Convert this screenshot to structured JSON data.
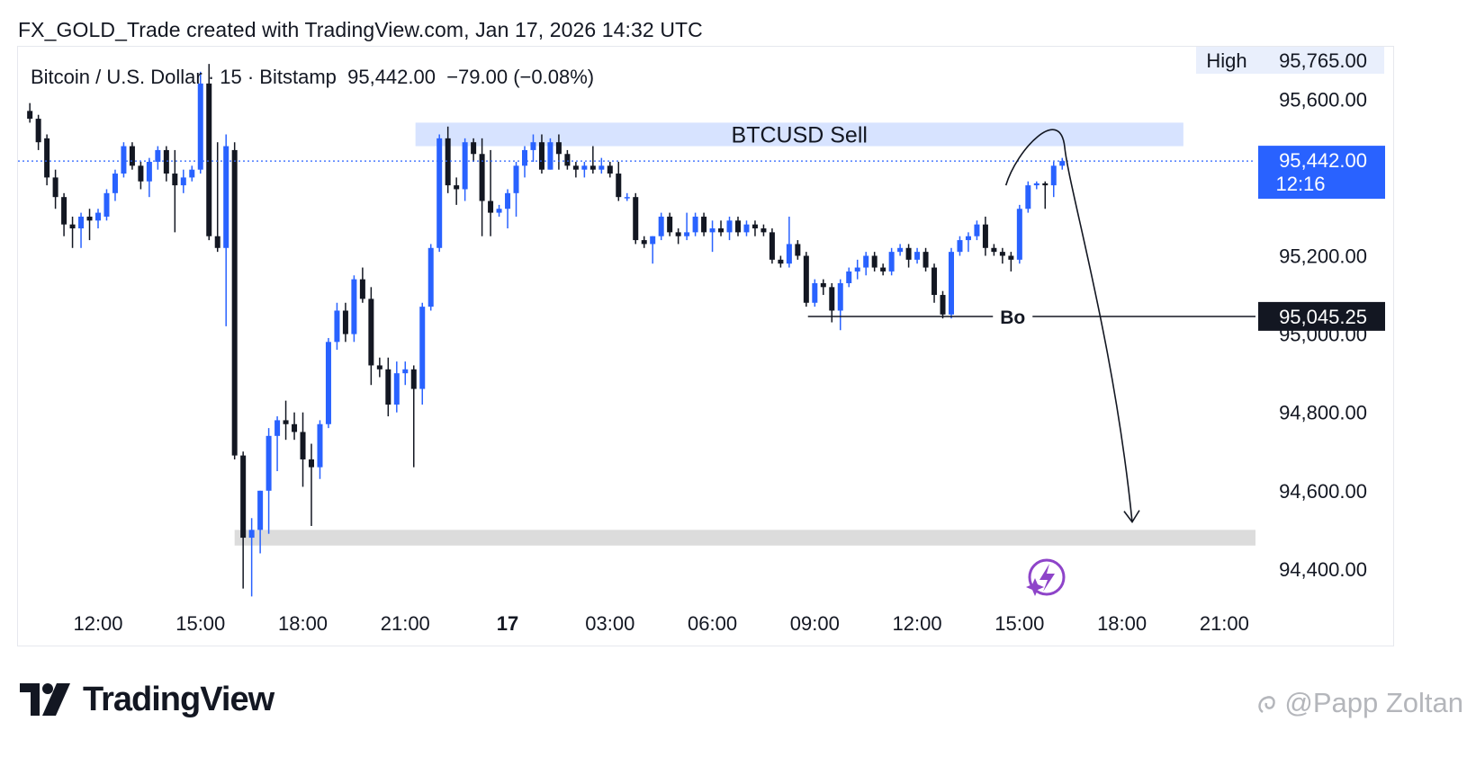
{
  "caption": "FX_GOLD_Trade created with TradingView.com, Jan 17, 2026 14:32 UTC",
  "symbol_info": "Bitcoin / U.S. Dollar · 15 · Bitstamp  95,442.00  −79.00 (−0.08%)",
  "brand": "TradingView",
  "watermark": "@Papp Zoltan",
  "colors": {
    "up": "#2962ff",
    "down": "#131722",
    "sell_zone": "#d7e3ff",
    "target_zone": "#dcdcdc",
    "last_price_bg": "#2962ff",
    "label_bg": "#131722"
  },
  "chart_data": {
    "type": "candlestick",
    "symbol": "BTCUSD",
    "interval": "15",
    "exchange": "Bitstamp",
    "ylim": [
      94330,
      95800
    ],
    "y_ticks": [
      {
        "value": 95600,
        "label": "95,600.00"
      },
      {
        "value": 95200,
        "label": "95,200.00"
      },
      {
        "value": 95000,
        "label": "95,000.00"
      },
      {
        "value": 94800,
        "label": "94,800.00"
      },
      {
        "value": 94600,
        "label": "94,600.00"
      },
      {
        "value": 94400,
        "label": "94,400.00"
      }
    ],
    "x_ticks": [
      {
        "hour": 12,
        "label": "12:00"
      },
      {
        "hour": 15,
        "label": "15:00"
      },
      {
        "hour": 18,
        "label": "18:00"
      },
      {
        "hour": 21,
        "label": "21:00"
      },
      {
        "hour": 24,
        "label": "17",
        "bold": true
      },
      {
        "hour": 27,
        "label": "03:00"
      },
      {
        "hour": 30,
        "label": "06:00"
      },
      {
        "hour": 33,
        "label": "09:00"
      },
      {
        "hour": 36,
        "label": "12:00"
      },
      {
        "hour": 39,
        "label": "15:00"
      },
      {
        "hour": 42,
        "label": "18:00"
      },
      {
        "hour": 45,
        "label": "21:00"
      }
    ],
    "high_label": "High",
    "high_value": "95,765.00",
    "last_price": {
      "value": 95442,
      "label": "95,442.00",
      "countdown": "12:16"
    },
    "level_label": {
      "value": 95045.25,
      "label": "95,045.25"
    },
    "zones": [
      {
        "name": "BTCUSD Sell",
        "from_hour": 21.3,
        "to_hour": 43.8,
        "top": 95540,
        "bottom": 95480
      },
      {
        "name": "",
        "from_hour": 16.0,
        "to_hour": 46.0,
        "top": 94500,
        "bottom": 94460
      }
    ],
    "hline": {
      "label": "Bo",
      "value": 95045,
      "from_hour": 32.8,
      "label_hour": 38.8
    },
    "projection": {
      "from": {
        "hour": 38.6,
        "value": 95380
      },
      "peak": {
        "hour": 39.4,
        "value": 95500
      },
      "to": {
        "hour": 42.3,
        "value": 94520
      }
    },
    "candles": [
      {
        "t": 10.0,
        "o": 95570,
        "h": 95590,
        "l": 95540,
        "c": 95550
      },
      {
        "t": 10.25,
        "o": 95550,
        "h": 95560,
        "l": 95470,
        "c": 95490
      },
      {
        "t": 10.5,
        "o": 95500,
        "h": 95510,
        "l": 95380,
        "c": 95400
      },
      {
        "t": 10.75,
        "o": 95400,
        "h": 95420,
        "l": 95320,
        "c": 95350
      },
      {
        "t": 11.0,
        "o": 95350,
        "h": 95360,
        "l": 95250,
        "c": 95280
      },
      {
        "t": 11.25,
        "o": 95280,
        "h": 95300,
        "l": 95220,
        "c": 95270
      },
      {
        "t": 11.5,
        "o": 95270,
        "h": 95310,
        "l": 95220,
        "c": 95300
      },
      {
        "t": 11.75,
        "o": 95300,
        "h": 95320,
        "l": 95240,
        "c": 95290
      },
      {
        "t": 12.0,
        "o": 95290,
        "h": 95320,
        "l": 95270,
        "c": 95310
      },
      {
        "t": 12.25,
        "o": 95300,
        "h": 95370,
        "l": 95290,
        "c": 95360
      },
      {
        "t": 12.5,
        "o": 95360,
        "h": 95420,
        "l": 95340,
        "c": 95410
      },
      {
        "t": 12.75,
        "o": 95410,
        "h": 95490,
        "l": 95400,
        "c": 95480
      },
      {
        "t": 13.0,
        "o": 95480,
        "h": 95490,
        "l": 95420,
        "c": 95430
      },
      {
        "t": 13.25,
        "o": 95430,
        "h": 95440,
        "l": 95370,
        "c": 95390
      },
      {
        "t": 13.5,
        "o": 95390,
        "h": 95450,
        "l": 95350,
        "c": 95440
      },
      {
        "t": 13.75,
        "o": 95440,
        "h": 95480,
        "l": 95420,
        "c": 95470
      },
      {
        "t": 14.0,
        "o": 95470,
        "h": 95480,
        "l": 95390,
        "c": 95410
      },
      {
        "t": 14.25,
        "o": 95410,
        "h": 95470,
        "l": 95260,
        "c": 95380
      },
      {
        "t": 14.5,
        "o": 95380,
        "h": 95420,
        "l": 95360,
        "c": 95400
      },
      {
        "t": 14.75,
        "o": 95400,
        "h": 95430,
        "l": 95390,
        "c": 95420
      },
      {
        "t": 15.0,
        "o": 95420,
        "h": 95670,
        "l": 95410,
        "c": 95640
      },
      {
        "t": 15.25,
        "o": 95640,
        "h": 95690,
        "l": 95240,
        "c": 95250
      },
      {
        "t": 15.5,
        "o": 95250,
        "h": 95490,
        "l": 95210,
        "c": 95220
      },
      {
        "t": 15.75,
        "o": 95220,
        "h": 95510,
        "l": 95020,
        "c": 95480
      },
      {
        "t": 16.0,
        "o": 95470,
        "h": 95490,
        "l": 94680,
        "c": 94690
      },
      {
        "t": 16.25,
        "o": 94690,
        "h": 94700,
        "l": 94350,
        "c": 94480
      },
      {
        "t": 16.5,
        "o": 94480,
        "h": 94530,
        "l": 94330,
        "c": 94500
      },
      {
        "t": 16.75,
        "o": 94500,
        "h": 94600,
        "l": 94440,
        "c": 94600
      },
      {
        "t": 17.0,
        "o": 94600,
        "h": 94760,
        "l": 94490,
        "c": 94740
      },
      {
        "t": 17.25,
        "o": 94740,
        "h": 94790,
        "l": 94650,
        "c": 94780
      },
      {
        "t": 17.5,
        "o": 94780,
        "h": 94830,
        "l": 94730,
        "c": 94770
      },
      {
        "t": 17.75,
        "o": 94770,
        "h": 94800,
        "l": 94730,
        "c": 94750
      },
      {
        "t": 18.0,
        "o": 94750,
        "h": 94800,
        "l": 94610,
        "c": 94680
      },
      {
        "t": 18.25,
        "o": 94680,
        "h": 94720,
        "l": 94510,
        "c": 94660
      },
      {
        "t": 18.5,
        "o": 94660,
        "h": 94780,
        "l": 94630,
        "c": 94770
      },
      {
        "t": 18.75,
        "o": 94770,
        "h": 94990,
        "l": 94760,
        "c": 94980
      },
      {
        "t": 19.0,
        "o": 94980,
        "h": 95080,
        "l": 94960,
        "c": 95060
      },
      {
        "t": 19.25,
        "o": 95060,
        "h": 95080,
        "l": 94980,
        "c": 95000
      },
      {
        "t": 19.5,
        "o": 95000,
        "h": 95150,
        "l": 94980,
        "c": 95140
      },
      {
        "t": 19.75,
        "o": 95140,
        "h": 95170,
        "l": 95080,
        "c": 95090
      },
      {
        "t": 20.0,
        "o": 95090,
        "h": 95120,
        "l": 94870,
        "c": 94920
      },
      {
        "t": 20.25,
        "o": 94920,
        "h": 94940,
        "l": 94890,
        "c": 94910
      },
      {
        "t": 20.5,
        "o": 94910,
        "h": 94940,
        "l": 94790,
        "c": 94820
      },
      {
        "t": 20.75,
        "o": 94820,
        "h": 94930,
        "l": 94800,
        "c": 94900
      },
      {
        "t": 21.0,
        "o": 94900,
        "h": 94930,
        "l": 94870,
        "c": 94910
      },
      {
        "t": 21.25,
        "o": 94910,
        "h": 94920,
        "l": 94660,
        "c": 94860
      },
      {
        "t": 21.5,
        "o": 94860,
        "h": 95080,
        "l": 94820,
        "c": 95070
      },
      {
        "t": 21.75,
        "o": 95070,
        "h": 95230,
        "l": 95060,
        "c": 95220
      },
      {
        "t": 22.0,
        "o": 95220,
        "h": 95510,
        "l": 95210,
        "c": 95500
      },
      {
        "t": 22.25,
        "o": 95500,
        "h": 95530,
        "l": 95360,
        "c": 95380
      },
      {
        "t": 22.5,
        "o": 95380,
        "h": 95400,
        "l": 95330,
        "c": 95370
      },
      {
        "t": 22.75,
        "o": 95370,
        "h": 95500,
        "l": 95340,
        "c": 95490
      },
      {
        "t": 23.0,
        "o": 95490,
        "h": 95500,
        "l": 95440,
        "c": 95460
      },
      {
        "t": 23.25,
        "o": 95460,
        "h": 95500,
        "l": 95250,
        "c": 95340
      },
      {
        "t": 23.5,
        "o": 95340,
        "h": 95470,
        "l": 95250,
        "c": 95310
      },
      {
        "t": 23.75,
        "o": 95310,
        "h": 95330,
        "l": 95300,
        "c": 95320
      },
      {
        "t": 24.0,
        "o": 95320,
        "h": 95370,
        "l": 95270,
        "c": 95360
      },
      {
        "t": 24.25,
        "o": 95360,
        "h": 95440,
        "l": 95300,
        "c": 95430
      },
      {
        "t": 24.5,
        "o": 95430,
        "h": 95480,
        "l": 95400,
        "c": 95470
      },
      {
        "t": 24.75,
        "o": 95470,
        "h": 95510,
        "l": 95440,
        "c": 95490
      },
      {
        "t": 25.0,
        "o": 95490,
        "h": 95510,
        "l": 95410,
        "c": 95420
      },
      {
        "t": 25.25,
        "o": 95420,
        "h": 95500,
        "l": 95420,
        "c": 95490
      },
      {
        "t": 25.5,
        "o": 95490,
        "h": 95510,
        "l": 95420,
        "c": 95460
      },
      {
        "t": 25.75,
        "o": 95460,
        "h": 95470,
        "l": 95420,
        "c": 95430
      },
      {
        "t": 26.0,
        "o": 95430,
        "h": 95440,
        "l": 95400,
        "c": 95420
      },
      {
        "t": 26.25,
        "o": 95420,
        "h": 95440,
        "l": 95400,
        "c": 95430
      },
      {
        "t": 26.5,
        "o": 95430,
        "h": 95480,
        "l": 95410,
        "c": 95420
      },
      {
        "t": 26.75,
        "o": 95420,
        "h": 95450,
        "l": 95410,
        "c": 95430
      },
      {
        "t": 27.0,
        "o": 95430,
        "h": 95440,
        "l": 95400,
        "c": 95410
      },
      {
        "t": 27.25,
        "o": 95410,
        "h": 95440,
        "l": 95340,
        "c": 95350
      },
      {
        "t": 27.5,
        "o": 95350,
        "h": 95360,
        "l": 95340,
        "c": 95350
      },
      {
        "t": 27.75,
        "o": 95350,
        "h": 95360,
        "l": 95230,
        "c": 95240
      },
      {
        "t": 28.0,
        "o": 95240,
        "h": 95250,
        "l": 95220,
        "c": 95230
      },
      {
        "t": 28.25,
        "o": 95230,
        "h": 95250,
        "l": 95180,
        "c": 95250
      },
      {
        "t": 28.5,
        "o": 95250,
        "h": 95310,
        "l": 95240,
        "c": 95300
      },
      {
        "t": 28.75,
        "o": 95300,
        "h": 95310,
        "l": 95250,
        "c": 95260
      },
      {
        "t": 29.0,
        "o": 95260,
        "h": 95270,
        "l": 95230,
        "c": 95250
      },
      {
        "t": 29.25,
        "o": 95250,
        "h": 95310,
        "l": 95240,
        "c": 95260
      },
      {
        "t": 29.5,
        "o": 95260,
        "h": 95310,
        "l": 95250,
        "c": 95300
      },
      {
        "t": 29.75,
        "o": 95300,
        "h": 95310,
        "l": 95250,
        "c": 95260
      },
      {
        "t": 30.0,
        "o": 95260,
        "h": 95290,
        "l": 95210,
        "c": 95270
      },
      {
        "t": 30.25,
        "o": 95270,
        "h": 95290,
        "l": 95250,
        "c": 95260
      },
      {
        "t": 30.5,
        "o": 95260,
        "h": 95300,
        "l": 95240,
        "c": 95290
      },
      {
        "t": 30.75,
        "o": 95290,
        "h": 95300,
        "l": 95250,
        "c": 95260
      },
      {
        "t": 31.0,
        "o": 95260,
        "h": 95290,
        "l": 95250,
        "c": 95280
      },
      {
        "t": 31.25,
        "o": 95280,
        "h": 95290,
        "l": 95250,
        "c": 95270
      },
      {
        "t": 31.5,
        "o": 95270,
        "h": 95280,
        "l": 95250,
        "c": 95260
      },
      {
        "t": 31.75,
        "o": 95260,
        "h": 95270,
        "l": 95180,
        "c": 95190
      },
      {
        "t": 32.0,
        "o": 95190,
        "h": 95200,
        "l": 95170,
        "c": 95180
      },
      {
        "t": 32.25,
        "o": 95180,
        "h": 95300,
        "l": 95170,
        "c": 95230
      },
      {
        "t": 32.5,
        "o": 95230,
        "h": 95240,
        "l": 95190,
        "c": 95200
      },
      {
        "t": 32.75,
        "o": 95200,
        "h": 95210,
        "l": 95070,
        "c": 95080
      },
      {
        "t": 33.0,
        "o": 95080,
        "h": 95140,
        "l": 95070,
        "c": 95130
      },
      {
        "t": 33.25,
        "o": 95130,
        "h": 95140,
        "l": 95100,
        "c": 95120
      },
      {
        "t": 33.5,
        "o": 95120,
        "h": 95130,
        "l": 95030,
        "c": 95060
      },
      {
        "t": 33.75,
        "o": 95060,
        "h": 95140,
        "l": 95010,
        "c": 95130
      },
      {
        "t": 34.0,
        "o": 95130,
        "h": 95170,
        "l": 95120,
        "c": 95160
      },
      {
        "t": 34.25,
        "o": 95160,
        "h": 95190,
        "l": 95140,
        "c": 95170
      },
      {
        "t": 34.5,
        "o": 95170,
        "h": 95210,
        "l": 95150,
        "c": 95200
      },
      {
        "t": 34.75,
        "o": 95200,
        "h": 95210,
        "l": 95160,
        "c": 95170
      },
      {
        "t": 35.0,
        "o": 95170,
        "h": 95180,
        "l": 95150,
        "c": 95160
      },
      {
        "t": 35.25,
        "o": 95160,
        "h": 95220,
        "l": 95150,
        "c": 95210
      },
      {
        "t": 35.5,
        "o": 95210,
        "h": 95230,
        "l": 95200,
        "c": 95220
      },
      {
        "t": 35.75,
        "o": 95220,
        "h": 95230,
        "l": 95170,
        "c": 95190
      },
      {
        "t": 36.0,
        "o": 95190,
        "h": 95220,
        "l": 95180,
        "c": 95210
      },
      {
        "t": 36.25,
        "o": 95210,
        "h": 95220,
        "l": 95160,
        "c": 95170
      },
      {
        "t": 36.5,
        "o": 95170,
        "h": 95180,
        "l": 95080,
        "c": 95100
      },
      {
        "t": 36.75,
        "o": 95100,
        "h": 95110,
        "l": 95040,
        "c": 95050
      },
      {
        "t": 37.0,
        "o": 95050,
        "h": 95220,
        "l": 95040,
        "c": 95210
      },
      {
        "t": 37.25,
        "o": 95210,
        "h": 95250,
        "l": 95200,
        "c": 95240
      },
      {
        "t": 37.5,
        "o": 95240,
        "h": 95260,
        "l": 95210,
        "c": 95250
      },
      {
        "t": 37.75,
        "o": 95250,
        "h": 95290,
        "l": 95240,
        "c": 95280
      },
      {
        "t": 38.0,
        "o": 95280,
        "h": 95300,
        "l": 95200,
        "c": 95220
      },
      {
        "t": 38.25,
        "o": 95220,
        "h": 95230,
        "l": 95200,
        "c": 95210
      },
      {
        "t": 38.5,
        "o": 95210,
        "h": 95220,
        "l": 95180,
        "c": 95200
      },
      {
        "t": 38.75,
        "o": 95200,
        "h": 95210,
        "l": 95160,
        "c": 95190
      },
      {
        "t": 39.0,
        "o": 95190,
        "h": 95330,
        "l": 95180,
        "c": 95320
      },
      {
        "t": 39.25,
        "o": 95320,
        "h": 95390,
        "l": 95310,
        "c": 95380
      },
      {
        "t": 39.5,
        "o": 95380,
        "h": 95390,
        "l": 95370,
        "c": 95385
      },
      {
        "t": 39.75,
        "o": 95385,
        "h": 95390,
        "l": 95320,
        "c": 95380
      },
      {
        "t": 40.0,
        "o": 95380,
        "h": 95440,
        "l": 95350,
        "c": 95430
      },
      {
        "t": 40.25,
        "o": 95430,
        "h": 95450,
        "l": 95420,
        "c": 95442
      }
    ]
  }
}
